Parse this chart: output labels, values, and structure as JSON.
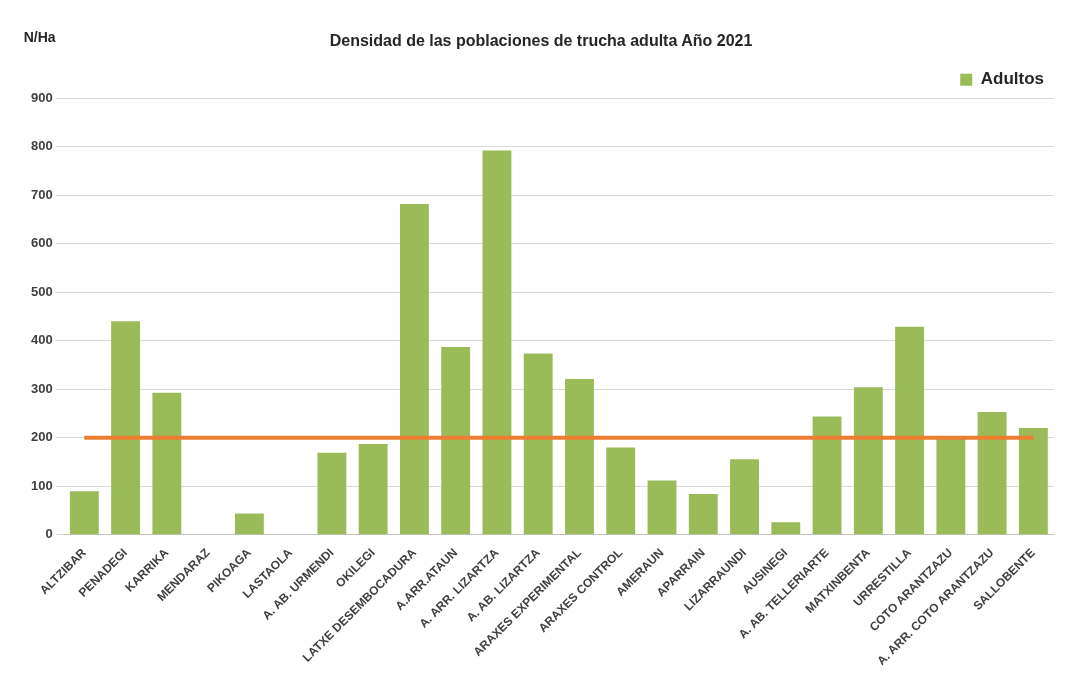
{
  "chart_data": {
    "type": "bar",
    "title": "Densidad de las poblaciones de trucha adulta Año 2021",
    "ylabel": "N/Ha",
    "categories": [
      "ALTZIBAR",
      "PENADEGI",
      "KARRIKA",
      "MENDARAZ",
      "PIKOAGA",
      "LASTAOLA",
      "A. AB. URMENDI",
      "OKILEGI",
      "LATXE DESEMBOCADURA",
      "A.ARR.ATAUN",
      "A. ARR. LIZARTZA",
      "A. AB. LIZARTZA",
      "ARAXES EXPERIMENTAL",
      "ARAXES CONTROL",
      "AMERAUN",
      "APARRAIN",
      "LIZARRAUNDI",
      "AUSINEGI",
      "A. AB. TELLERIARTE",
      "MATXINBENTA",
      "URRESTILLA",
      "COTO ARANTZAZU",
      "A. ARR. COTO ARANTZAZU",
      "SALLOBENTE"
    ],
    "series": [
      {
        "name": "Adultos",
        "color": "#9bbb59",
        "values": [
          90,
          440,
          293,
          0,
          44,
          0,
          169,
          187,
          682,
          387,
          792,
          374,
          321,
          180,
          112,
          84,
          156,
          26,
          244,
          304,
          429,
          200,
          253,
          220
        ]
      }
    ],
    "ylim": [
      0,
      900
    ],
    "yticks": [
      0,
      100,
      200,
      300,
      400,
      500,
      600,
      700,
      800,
      900
    ],
    "grid": "y",
    "legend": "top right",
    "ref_lines": [
      {
        "axis": "y",
        "value": 200,
        "color": "#ed7d31"
      }
    ]
  }
}
